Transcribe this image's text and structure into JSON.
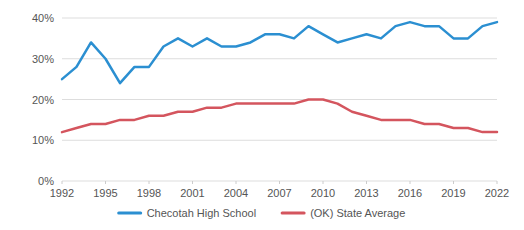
{
  "chart_data": {
    "type": "line",
    "x": [
      1992,
      1993,
      1994,
      1995,
      1996,
      1997,
      1998,
      1999,
      2000,
      2001,
      2002,
      2003,
      2004,
      2005,
      2006,
      2007,
      2008,
      2009,
      2010,
      2011,
      2012,
      2013,
      2014,
      2015,
      2016,
      2017,
      2018,
      2019,
      2020,
      2021,
      2022
    ],
    "series": [
      {
        "name": "Checotah High School",
        "color": "#2b8fd1",
        "values": [
          25,
          28,
          34,
          30,
          24,
          28,
          28,
          33,
          35,
          33,
          35,
          33,
          33,
          34,
          36,
          36,
          35,
          38,
          36,
          34,
          35,
          36,
          35,
          38,
          39,
          38,
          38,
          35,
          35,
          38,
          39
        ]
      },
      {
        "name": "(OK) State Average",
        "color": "#d4555e",
        "values": [
          12,
          13,
          14,
          14,
          15,
          15,
          16,
          16,
          17,
          17,
          18,
          18,
          19,
          19,
          19,
          19,
          19,
          20,
          20,
          19,
          17,
          16,
          15,
          15,
          15,
          14,
          14,
          13,
          13,
          12,
          12
        ]
      }
    ],
    "xlim": [
      1992,
      2022
    ],
    "xticks": [
      1992,
      1995,
      1998,
      2001,
      2004,
      2007,
      2010,
      2013,
      2016,
      2019,
      2022
    ],
    "ylim": [
      0,
      40
    ],
    "yticks": [
      {
        "value": 0,
        "label": "0%"
      },
      {
        "value": 10,
        "label": "10%"
      },
      {
        "value": 20,
        "label": "20%"
      },
      {
        "value": 30,
        "label": "30%"
      },
      {
        "value": 40,
        "label": "40%"
      }
    ],
    "grid": true,
    "legend": "bottom"
  }
}
